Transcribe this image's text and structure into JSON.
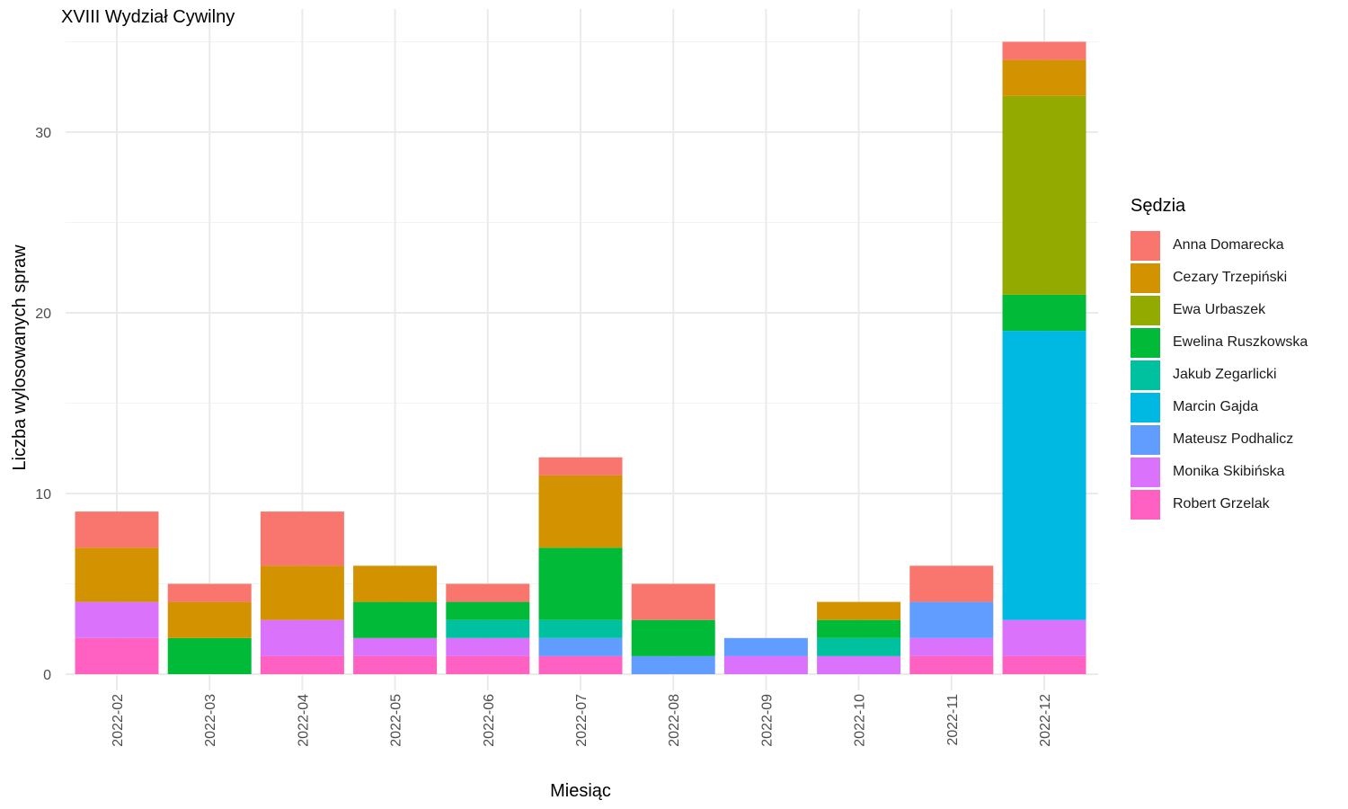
{
  "chart_data": {
    "type": "bar",
    "stacked": true,
    "title": "XVIII Wydział Cywilny",
    "xlabel": "Miesiąc",
    "ylabel": "Liczba wylosowanych spraw",
    "ylim": [
      0,
      35
    ],
    "yticks": [
      0,
      10,
      20,
      30
    ],
    "grid": true,
    "legend_title": "Sędzia",
    "legend_position": "right",
    "categories": [
      "2022-02",
      "2022-03",
      "2022-04",
      "2022-05",
      "2022-06",
      "2022-07",
      "2022-08",
      "2022-09",
      "2022-10",
      "2022-11",
      "2022-12"
    ],
    "series": [
      {
        "name": "Anna Domarecka",
        "color": "#F8766D",
        "values": [
          2,
          1,
          3,
          0,
          1,
          1,
          2,
          0,
          0,
          2,
          1
        ]
      },
      {
        "name": "Cezary Trzepiński",
        "color": "#D39200",
        "values": [
          3,
          2,
          3,
          2,
          0,
          4,
          0,
          0,
          1,
          0,
          2
        ]
      },
      {
        "name": "Ewa Urbaszek",
        "color": "#93AA00",
        "values": [
          0,
          0,
          0,
          0,
          0,
          0,
          0,
          0,
          0,
          0,
          11
        ]
      },
      {
        "name": "Ewelina Ruszkowska",
        "color": "#00BA38",
        "values": [
          0,
          2,
          0,
          2,
          1,
          4,
          2,
          0,
          1,
          0,
          2
        ]
      },
      {
        "name": "Jakub Zegarlicki",
        "color": "#00C19F",
        "values": [
          0,
          0,
          0,
          0,
          1,
          1,
          0,
          0,
          1,
          0,
          0
        ]
      },
      {
        "name": "Marcin Gajda",
        "color": "#00B9E3",
        "values": [
          0,
          0,
          0,
          0,
          0,
          0,
          0,
          0,
          0,
          0,
          16
        ]
      },
      {
        "name": "Mateusz Podhalicz",
        "color": "#619CFF",
        "values": [
          0,
          0,
          0,
          0,
          0,
          1,
          1,
          1,
          0,
          2,
          0
        ]
      },
      {
        "name": "Monika Skibińska",
        "color": "#DB72FB",
        "values": [
          2,
          0,
          2,
          1,
          1,
          0,
          0,
          1,
          1,
          1,
          2
        ]
      },
      {
        "name": "Robert Grzelak",
        "color": "#FF61C3",
        "values": [
          2,
          0,
          1,
          1,
          1,
          1,
          0,
          0,
          0,
          1,
          1
        ]
      }
    ]
  }
}
